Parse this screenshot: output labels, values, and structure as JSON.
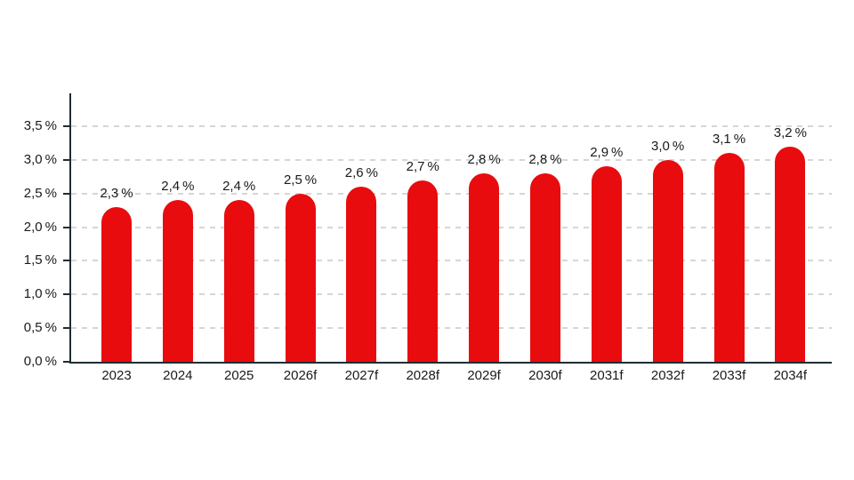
{
  "chart_data": {
    "type": "bar",
    "categories": [
      "2023",
      "2024",
      "2025",
      "2026f",
      "2027f",
      "2028f",
      "2029f",
      "2030f",
      "2031f",
      "2032f",
      "2033f",
      "2034f"
    ],
    "values": [
      2.3,
      2.4,
      2.4,
      2.5,
      2.6,
      2.7,
      2.8,
      2.8,
      2.9,
      3.0,
      3.1,
      3.2
    ],
    "value_labels": [
      "2,3 %",
      "2,4 %",
      "2,4 %",
      "2,5 %",
      "2,6 %",
      "2,7 %",
      "2,8 %",
      "2,8 %",
      "2,9 %",
      "3,0 %",
      "3,1 %",
      "3,2 %"
    ],
    "title": "",
    "xlabel": "",
    "ylabel": "",
    "ylim": [
      0,
      3.5
    ],
    "y_ticks": [
      0,
      0.5,
      1.0,
      1.5,
      2.0,
      2.5,
      3.0,
      3.5
    ],
    "y_tick_labels": [
      "0,0 %",
      "0,5 %",
      "1,0 %",
      "1,5 %",
      "2,0 %",
      "2,5 %",
      "3,0 %",
      "3,5 %"
    ],
    "grid": "horizontal-dashed",
    "legend": "none",
    "bar_color": "#e80c0f",
    "axis_color": "#1f2d33",
    "gridline_color": "#d6d6d6",
    "label_color": "#1a1a1a"
  }
}
